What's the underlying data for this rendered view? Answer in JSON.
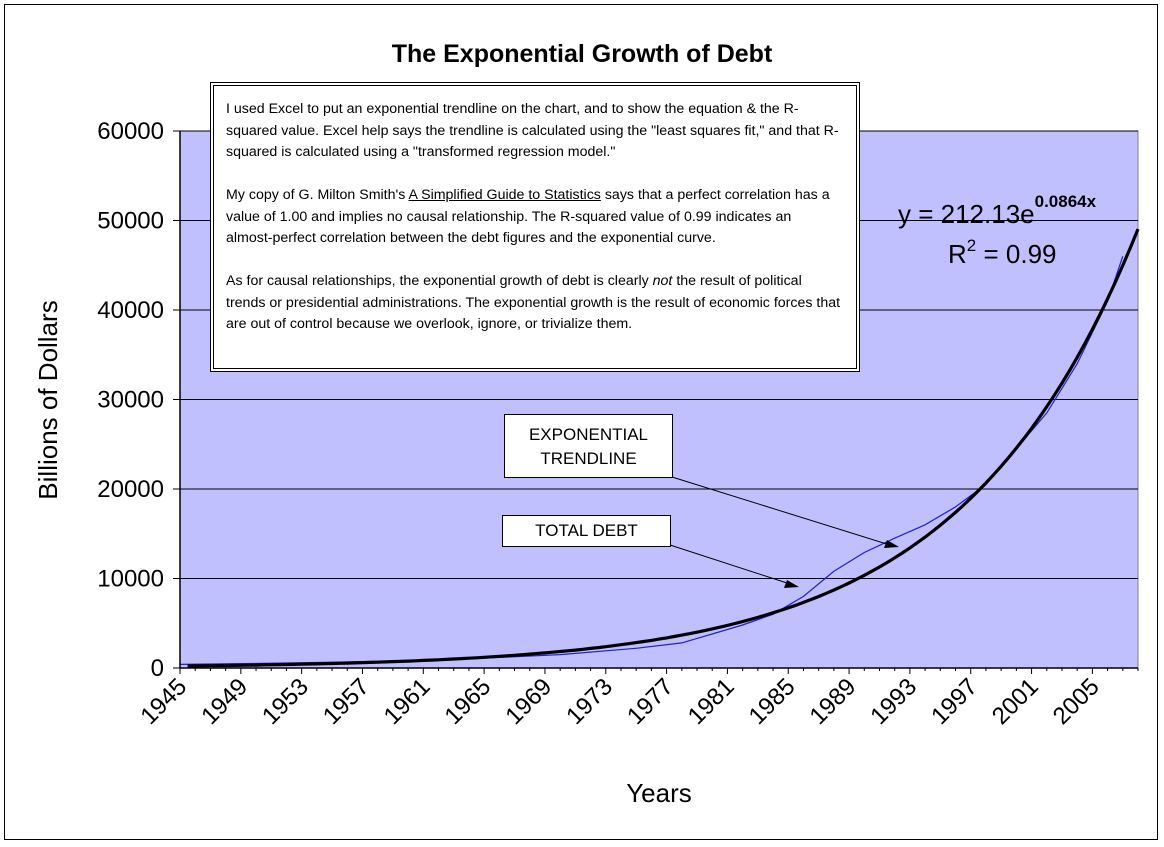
{
  "chart_data": {
    "type": "line",
    "title": "The Exponential Growth of Debt",
    "xlabel": "Years",
    "ylabel": "Billions of Dollars",
    "xlim": [
      1945,
      2008
    ],
    "ylim": [
      0,
      60000
    ],
    "yticks": [
      0,
      10000,
      20000,
      30000,
      40000,
      50000,
      60000
    ],
    "xticks": [
      1945,
      1949,
      1953,
      1957,
      1961,
      1965,
      1969,
      1973,
      1977,
      1981,
      1985,
      1989,
      1993,
      1997,
      2001,
      2005
    ],
    "grid": "horizontal",
    "legend": "none",
    "colors": {
      "plot_background": "#c0c0ff",
      "total_debt_line": "#2020d0",
      "trendline": "#000000"
    },
    "series": [
      {
        "label": "TOTAL DEBT",
        "x": [
          1945,
          1950,
          1955,
          1960,
          1965,
          1970,
          1975,
          1978,
          1980,
          1982,
          1984,
          1986,
          1988,
          1990,
          1992,
          1994,
          1996,
          1998,
          2000,
          2002,
          2004,
          2006,
          2007
        ],
        "values": [
          400,
          500,
          650,
          800,
          1100,
          1500,
          2200,
          2800,
          3800,
          4800,
          6000,
          8000,
          10800,
          12900,
          14500,
          16000,
          18000,
          20500,
          24500,
          28500,
          34000,
          41000,
          46000
        ]
      },
      {
        "label": "EXPONENTIAL TRENDLINE",
        "equation_a": 212.13,
        "equation_b": 0.0864,
        "x_start": 1945,
        "x": [
          1945,
          1950,
          1955,
          1960,
          1965,
          1970,
          1975,
          1980,
          1985,
          1990,
          1995,
          2000,
          2005,
          2008
        ],
        "values": [
          212,
          326,
          501,
          770,
          1183,
          1818,
          2793,
          4291,
          6592,
          10127,
          15558,
          23902,
          36720,
          47677
        ]
      }
    ],
    "annotations": {
      "equation_main": "y = 212.13e",
      "equation_exponent": "0.0864x",
      "r2_prefix": "R",
      "r2_sup": "2",
      "r2_suffix": " = 0.99",
      "trendline_tag_line1": "EXPONENTIAL",
      "trendline_tag_line2": "TRENDLINE",
      "total_debt_tag": "TOTAL DEBT"
    }
  },
  "note": {
    "para1": "I used Excel to put an exponential trendline on the chart, and to show the equation & the R-squared value. Excel help says the trendline is calculated using the \"least squares fit,\" and that R-squared is calculated using a \"transformed regression model.\"",
    "para2_before": "My copy of G. Milton Smith's ",
    "para2_book": "A Simplified Guide to Statistics",
    "para2_after": " says that a perfect correlation has a value of 1.00 and implies no causal relationship. The R-squared value of 0.99 indicates an almost-perfect correlation between the debt figures and the exponential curve.",
    "para3_before": "As for causal relationships, the exponential growth of debt is clearly ",
    "para3_emph": "not",
    "para3_after": "  the result of political trends or presidential administrations. The exponential growth is the result of economic forces that are out of control because we overlook, ignore, or trivialize them."
  }
}
